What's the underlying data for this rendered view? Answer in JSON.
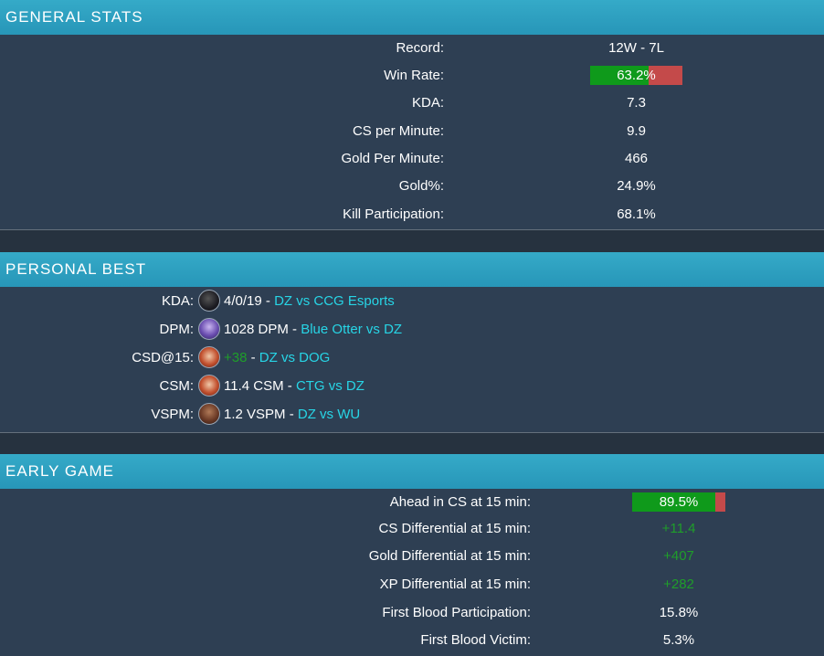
{
  "general": {
    "title": "GENERAL STATS",
    "rows": [
      {
        "label": "Record:",
        "value": "12W - 7L"
      },
      {
        "label": "Win Rate:",
        "value": "63.2%",
        "fraction": 0.632
      },
      {
        "label": "KDA:",
        "value": "7.3"
      },
      {
        "label": "CS per Minute:",
        "value": "9.9"
      },
      {
        "label": "Gold Per Minute:",
        "value": "466"
      },
      {
        "label": "Gold%:",
        "value": "24.9%"
      },
      {
        "label": "Kill Participation:",
        "value": "68.1%"
      }
    ]
  },
  "best": {
    "title": "PERSONAL BEST",
    "rows": [
      {
        "label": "KDA:",
        "icon": "champion-portrait-icon",
        "stat": "4/0/19",
        "sep": " - ",
        "match": "DZ vs CCG Esports"
      },
      {
        "label": "DPM:",
        "icon": "champion-portrait-icon",
        "stat": "1028 DPM",
        "sep": " - ",
        "match": "Blue Otter vs DZ"
      },
      {
        "label": "CSD@15:",
        "icon": "champion-portrait-icon",
        "stat": "+38",
        "sep": " - ",
        "match": "DZ vs DOG"
      },
      {
        "label": "CSM:",
        "icon": "champion-portrait-icon",
        "stat": "11.4 CSM",
        "sep": " - ",
        "match": "CTG vs DZ"
      },
      {
        "label": "VSPM:",
        "icon": "champion-portrait-icon",
        "stat": "1.2 VSPM",
        "sep": " - ",
        "match": "DZ vs WU"
      }
    ]
  },
  "early": {
    "title": "EARLY GAME",
    "rows": [
      {
        "label": "Ahead in CS at 15 min:",
        "value": "89.5%",
        "fraction": 0.895
      },
      {
        "label": "CS Differential at 15 min:",
        "value": "+11.4"
      },
      {
        "label": "Gold Differential at 15 min:",
        "value": "+407"
      },
      {
        "label": "XP Differential at 15 min:",
        "value": "+282"
      },
      {
        "label": "First Blood Participation:",
        "value": "15.8%"
      },
      {
        "label": "First Blood Victim:",
        "value": "5.3%"
      }
    ]
  },
  "colors": {
    "header": "#2796b8",
    "win_bar": "#0f9a1b",
    "loss_bar": "#c44a4a",
    "positive": "#1f9e2a",
    "link": "#27d5e6"
  }
}
